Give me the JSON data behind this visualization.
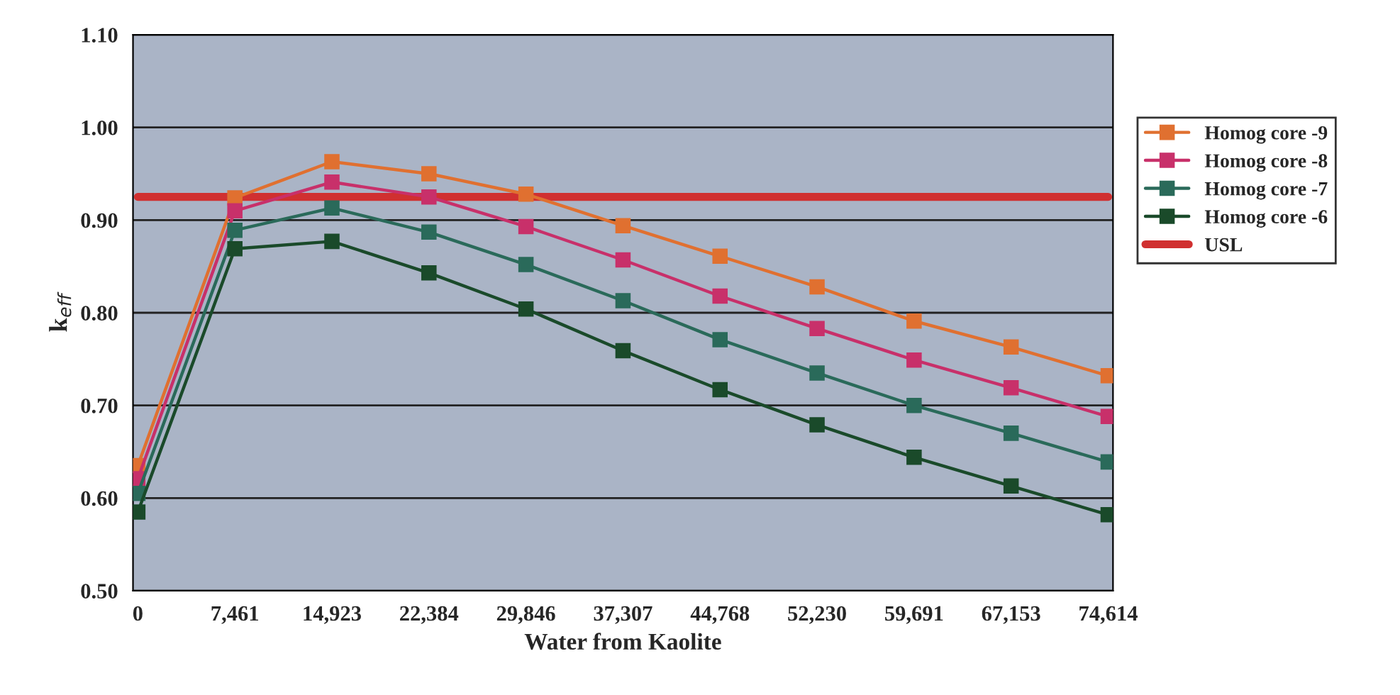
{
  "chart_data": {
    "type": "line",
    "xlabel": "Water from Kaolite",
    "ylabel": "k$_{eff}$",
    "categories": [
      "0",
      "7,461",
      "14,923",
      "22,384",
      "29,846",
      "37,307",
      "44,768",
      "52,230",
      "59,691",
      "67,153",
      "74,614"
    ],
    "series": [
      {
        "name": "Homog core -9",
        "color": "#e07030",
        "values": [
          0.635,
          0.924,
          0.963,
          0.95,
          0.928,
          0.894,
          0.861,
          0.828,
          0.791,
          0.763,
          0.732
        ]
      },
      {
        "name": "Homog core -8",
        "color": "#c8306a",
        "values": [
          0.621,
          0.91,
          0.941,
          0.925,
          0.893,
          0.857,
          0.818,
          0.783,
          0.749,
          0.719,
          0.688
        ]
      },
      {
        "name": "Homog core -7",
        "color": "#2a6a5a",
        "values": [
          0.605,
          0.889,
          0.913,
          0.887,
          0.852,
          0.813,
          0.771,
          0.735,
          0.7,
          0.67,
          0.639
        ]
      },
      {
        "name": "Homog core -6",
        "color": "#1a4a2a",
        "values": [
          0.585,
          0.869,
          0.877,
          0.843,
          0.804,
          0.759,
          0.717,
          0.679,
          0.644,
          0.613,
          0.582
        ]
      },
      {
        "name": "USL",
        "color": "#d03030",
        "marker": "none",
        "values": [
          0.925,
          0.925,
          0.925,
          0.925,
          0.925,
          0.925,
          0.925,
          0.925,
          0.925,
          0.925,
          0.925
        ]
      }
    ],
    "ylim": [
      0.5,
      1.1
    ],
    "yticks": [
      {
        "value": 0.5,
        "label": "0.50"
      },
      {
        "value": 0.6,
        "label": "0.60"
      },
      {
        "value": 0.7,
        "label": "0.70"
      },
      {
        "value": 0.8,
        "label": "0.80"
      },
      {
        "value": 0.9,
        "label": "0.90"
      },
      {
        "value": 1.0,
        "label": "1.00"
      },
      {
        "value": 1.1,
        "label": "1.10"
      }
    ],
    "grid": "y",
    "legend": "right",
    "marker": "square",
    "line_style": "solid"
  }
}
